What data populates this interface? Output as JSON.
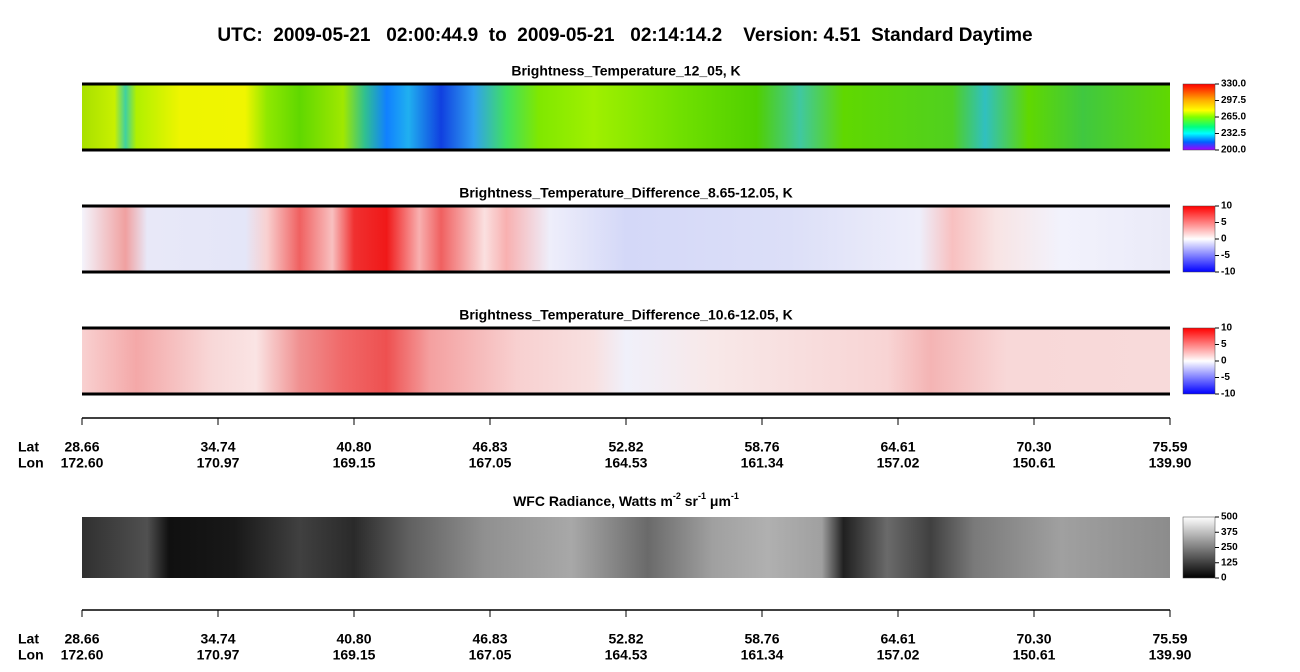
{
  "title": "UTC:  2009-05-21   02:00:44.9  to  2009-05-21   02:14:14.2    Version: 4.51  Standard Daytime",
  "panels": [
    {
      "title": "Brightness_Temperature_12_05, K",
      "colorbar": [
        "330.0",
        "297.5",
        "265.0",
        "232.5",
        "200.0"
      ]
    },
    {
      "title": "Brightness_Temperature_Difference_8.65-12.05, K",
      "colorbar": [
        "10",
        "5",
        "0",
        "-5",
        "-10"
      ]
    },
    {
      "title": "Brightness_Temperature_Difference_10.6-12.05, K",
      "colorbar": [
        "10",
        "5",
        "0",
        "-5",
        "-10"
      ]
    }
  ],
  "wfc": {
    "title_parts": [
      "WFC Radiance, Watts m",
      "-2",
      " sr",
      "-1",
      " μm",
      "-1"
    ],
    "colorbar": [
      "500",
      "375",
      "250",
      "125",
      "0"
    ]
  },
  "axes": [
    {
      "lat_label": "Lat",
      "lon_label": "Lon",
      "lat": [
        "28.66",
        "34.74",
        "40.80",
        "46.83",
        "52.82",
        "58.76",
        "64.61",
        "70.30",
        "75.59"
      ],
      "lon": [
        "172.60",
        "170.97",
        "169.15",
        "167.05",
        "164.53",
        "161.34",
        "157.02",
        "150.61",
        "139.90"
      ]
    },
    {
      "lat_label": "Lat",
      "lon_label": "Lon",
      "lat": [
        "28.66",
        "34.74",
        "40.80",
        "46.83",
        "52.82",
        "58.76",
        "64.61",
        "70.30",
        "75.59"
      ],
      "lon": [
        "172.60",
        "170.97",
        "169.15",
        "167.05",
        "164.53",
        "161.34",
        "157.02",
        "150.61",
        "139.90"
      ]
    }
  ]
}
